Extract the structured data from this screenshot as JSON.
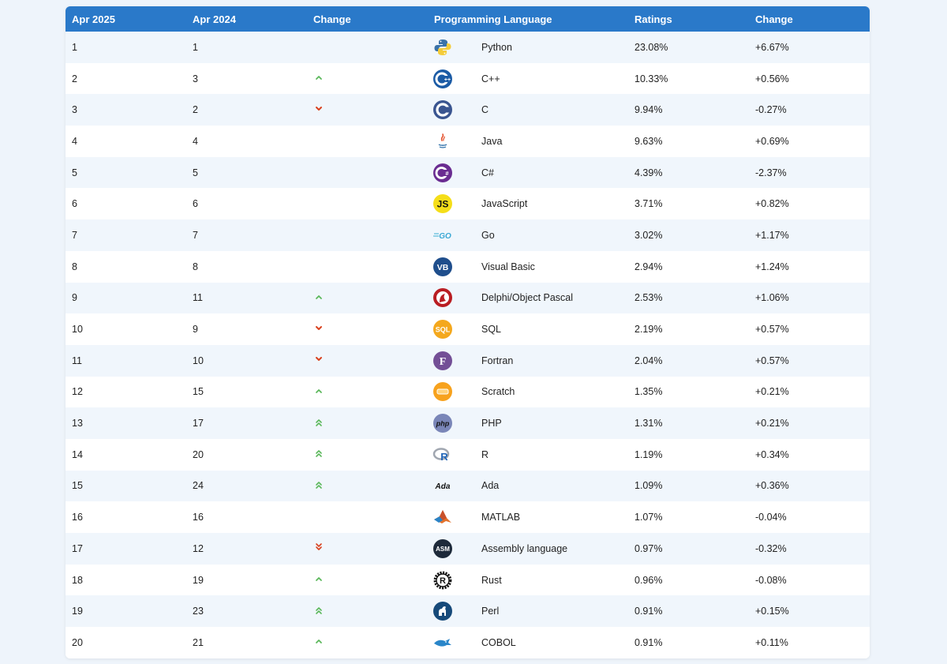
{
  "headers": {
    "current": "Apr 2025",
    "previous": "Apr 2024",
    "change": "Change",
    "language": "Programming Language",
    "ratings": "Ratings",
    "delta": "Change"
  },
  "colors": {
    "header_bg": "#2a79c9",
    "up": "#5cb85c",
    "down": "#d9411e"
  },
  "rows": [
    {
      "current": "1",
      "previous": "1",
      "trend": "none",
      "language": "Python",
      "ratings": "23.08%",
      "delta": "+6.67%",
      "icon": "python-logo-icon"
    },
    {
      "current": "2",
      "previous": "3",
      "trend": "up",
      "language": "C++",
      "ratings": "10.33%",
      "delta": "+0.56%",
      "icon": "cpp-logo-icon"
    },
    {
      "current": "3",
      "previous": "2",
      "trend": "down",
      "language": "C",
      "ratings": "9.94%",
      "delta": "-0.27%",
      "icon": "c-logo-icon"
    },
    {
      "current": "4",
      "previous": "4",
      "trend": "none",
      "language": "Java",
      "ratings": "9.63%",
      "delta": "+0.69%",
      "icon": "java-logo-icon"
    },
    {
      "current": "5",
      "previous": "5",
      "trend": "none",
      "language": "C#",
      "ratings": "4.39%",
      "delta": "-2.37%",
      "icon": "csharp-logo-icon"
    },
    {
      "current": "6",
      "previous": "6",
      "trend": "none",
      "language": "JavaScript",
      "ratings": "3.71%",
      "delta": "+0.82%",
      "icon": "javascript-logo-icon"
    },
    {
      "current": "7",
      "previous": "7",
      "trend": "none",
      "language": "Go",
      "ratings": "3.02%",
      "delta": "+1.17%",
      "icon": "go-logo-icon"
    },
    {
      "current": "8",
      "previous": "8",
      "trend": "none",
      "language": "Visual Basic",
      "ratings": "2.94%",
      "delta": "+1.24%",
      "icon": "visual-basic-logo-icon"
    },
    {
      "current": "9",
      "previous": "11",
      "trend": "up",
      "language": "Delphi/Object Pascal",
      "ratings": "2.53%",
      "delta": "+1.06%",
      "icon": "delphi-logo-icon"
    },
    {
      "current": "10",
      "previous": "9",
      "trend": "down",
      "language": "SQL",
      "ratings": "2.19%",
      "delta": "+0.57%",
      "icon": "sql-logo-icon"
    },
    {
      "current": "11",
      "previous": "10",
      "trend": "down",
      "language": "Fortran",
      "ratings": "2.04%",
      "delta": "+0.57%",
      "icon": "fortran-logo-icon"
    },
    {
      "current": "12",
      "previous": "15",
      "trend": "up",
      "language": "Scratch",
      "ratings": "1.35%",
      "delta": "+0.21%",
      "icon": "scratch-logo-icon"
    },
    {
      "current": "13",
      "previous": "17",
      "trend": "up2",
      "language": "PHP",
      "ratings": "1.31%",
      "delta": "+0.21%",
      "icon": "php-logo-icon"
    },
    {
      "current": "14",
      "previous": "20",
      "trend": "up2",
      "language": "R",
      "ratings": "1.19%",
      "delta": "+0.34%",
      "icon": "r-logo-icon"
    },
    {
      "current": "15",
      "previous": "24",
      "trend": "up2",
      "language": "Ada",
      "ratings": "1.09%",
      "delta": "+0.36%",
      "icon": "ada-logo-icon"
    },
    {
      "current": "16",
      "previous": "16",
      "trend": "none",
      "language": "MATLAB",
      "ratings": "1.07%",
      "delta": "-0.04%",
      "icon": "matlab-logo-icon"
    },
    {
      "current": "17",
      "previous": "12",
      "trend": "down2",
      "language": "Assembly language",
      "ratings": "0.97%",
      "delta": "-0.32%",
      "icon": "assembly-logo-icon"
    },
    {
      "current": "18",
      "previous": "19",
      "trend": "up",
      "language": "Rust",
      "ratings": "0.96%",
      "delta": "-0.08%",
      "icon": "rust-logo-icon"
    },
    {
      "current": "19",
      "previous": "23",
      "trend": "up2",
      "language": "Perl",
      "ratings": "0.91%",
      "delta": "+0.15%",
      "icon": "perl-logo-icon"
    },
    {
      "current": "20",
      "previous": "21",
      "trend": "up",
      "language": "COBOL",
      "ratings": "0.91%",
      "delta": "+0.11%",
      "icon": "cobol-logo-icon"
    }
  ]
}
